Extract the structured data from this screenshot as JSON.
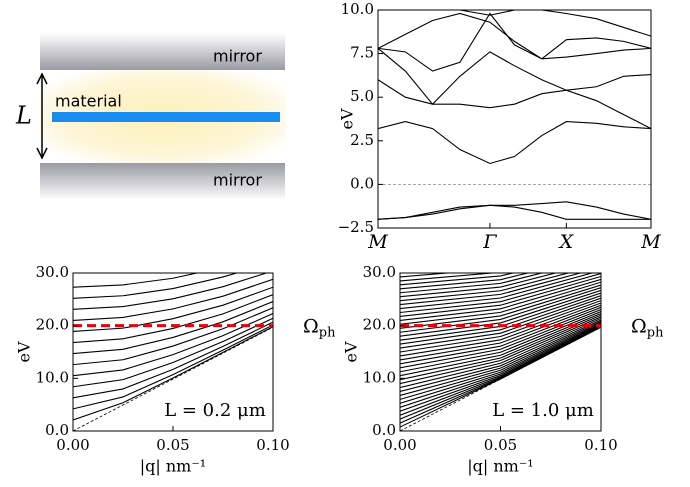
{
  "schematic": {
    "top_mirror": "mirror",
    "bottom_mirror": "mirror",
    "material": "material",
    "gap": "L"
  },
  "chart_data": [
    {
      "type": "line",
      "ylabel": "eV",
      "x": [
        0,
        0.1,
        0.2,
        0.3,
        0.41,
        0.5,
        0.6,
        0.69,
        0.8,
        0.9,
        1
      ],
      "xlim": [
        0,
        1
      ],
      "xticks": [
        {
          "value": 0,
          "label": "M"
        },
        {
          "value": 0.41,
          "label": "Γ"
        },
        {
          "value": 0.69,
          "label": "X"
        },
        {
          "value": 1,
          "label": "M"
        }
      ],
      "ylim": [
        -2.5,
        10
      ],
      "yticks": [
        {
          "value": -2.5,
          "label": "−2.5"
        },
        {
          "value": 0,
          "label": "0.0"
        },
        {
          "value": 2.5,
          "label": "2.5"
        },
        {
          "value": 5,
          "label": "5.0"
        },
        {
          "value": 7.5,
          "label": "7.5"
        },
        {
          "value": 10,
          "label": "10.0"
        }
      ],
      "hline": 0,
      "series": [
        {
          "color": "#000000",
          "values": [
            -2.0,
            -1.9,
            -1.6,
            -1.3,
            -1.2,
            -1.3,
            -1.6,
            -2.0,
            -2.0,
            -2.0,
            -2.0
          ]
        },
        {
          "color": "#000000",
          "values": [
            -2.0,
            -1.9,
            -1.7,
            -1.4,
            -1.2,
            -1.2,
            -1.1,
            -1.0,
            -1.3,
            -1.7,
            -2.0
          ]
        },
        {
          "color": "#000000",
          "values": [
            3.2,
            3.6,
            3.2,
            2.0,
            1.2,
            1.6,
            2.8,
            3.6,
            3.5,
            3.3,
            3.2
          ]
        },
        {
          "color": "#000000",
          "values": [
            6.0,
            5.0,
            4.6,
            4.6,
            4.4,
            4.6,
            5.2,
            5.4,
            4.8,
            4.0,
            3.2
          ]
        },
        {
          "color": "#000000",
          "values": [
            7.8,
            6.5,
            4.6,
            6.2,
            7.6,
            6.8,
            6.0,
            5.4,
            5.6,
            6.2,
            6.3
          ]
        },
        {
          "color": "#000000",
          "values": [
            7.8,
            8.6,
            9.4,
            9.8,
            9.3,
            8.2,
            7.2,
            7.3,
            7.5,
            7.7,
            7.8
          ]
        },
        {
          "color": "#000000",
          "values": [
            7.8,
            7.6,
            6.5,
            7.0,
            9.8,
            8.0,
            7.2,
            8.3,
            8.4,
            8.2,
            7.8
          ]
        },
        {
          "color": "#000000",
          "values": [
            10,
            10,
            10,
            10,
            9.7,
            10,
            10,
            9.8,
            9.5,
            9.0,
            8.5
          ]
        }
      ]
    },
    {
      "type": "line",
      "ylabel": "eV",
      "xlabel": "|q| nm⁻¹",
      "x": [
        0,
        0.025,
        0.05,
        0.075,
        0.1
      ],
      "xlim": [
        0,
        0.1
      ],
      "xticks": [
        {
          "value": 0,
          "label": "0.00"
        },
        {
          "value": 0.05,
          "label": "0.05"
        },
        {
          "value": 0.1,
          "label": "0.10"
        }
      ],
      "ylim": [
        0,
        30
      ],
      "yticks": [
        {
          "value": 0,
          "label": "0.0"
        },
        {
          "value": 10,
          "label": "10.0"
        },
        {
          "value": 20,
          "label": "20.0"
        },
        {
          "value": 30,
          "label": "30.0"
        }
      ],
      "hline": {
        "value": 20,
        "color": "#e8000b",
        "symbol": "Ω",
        "subscript": "ph"
      },
      "annotation": "L = 0.2 μm",
      "series": [
        {
          "color": "#000000",
          "style": "dashed",
          "values": [
            0,
            4.93,
            9.85,
            14.78,
            19.7
          ]
        },
        {
          "color": "#000000",
          "values": [
            2.1,
            5.36,
            10.07,
            14.93,
            19.81
          ]
        },
        {
          "color": "#000000",
          "values": [
            4.2,
            6.47,
            10.71,
            15.36,
            20.14
          ]
        },
        {
          "color": "#000000",
          "values": [
            6.3,
            7.99,
            11.71,
            16.07,
            20.68
          ]
        },
        {
          "color": "#000000",
          "values": [
            8.4,
            9.75,
            13.01,
            17.0,
            21.4
          ]
        },
        {
          "color": "#000000",
          "values": [
            10.5,
            11.6,
            14.5,
            18.1,
            22.3
          ]
        },
        {
          "color": "#000000",
          "values": [
            12.6,
            13.53,
            16.13,
            19.42,
            23.39
          ]
        },
        {
          "color": "#000000",
          "values": [
            14.7,
            15.51,
            17.76,
            20.73,
            24.58
          ]
        },
        {
          "color": "#000000",
          "values": [
            16.8,
            17.51,
            19.48,
            22.24,
            25.89
          ]
        },
        {
          "color": "#000000",
          "values": [
            18.9,
            19.53,
            21.32,
            23.89,
            27.3
          ]
        },
        {
          "color": "#000000",
          "values": [
            21.0,
            21.57,
            23.19,
            25.6,
            28.8
          ]
        },
        {
          "color": "#000000",
          "values": [
            23.1,
            23.62,
            25.1,
            27.4,
            30.4
          ]
        },
        {
          "color": "#000000",
          "values": [
            25.2,
            25.68,
            27.04,
            29.25,
            32.0
          ]
        },
        {
          "color": "#000000",
          "values": [
            27.3,
            27.74,
            29.0,
            31.1,
            33.6
          ]
        }
      ]
    },
    {
      "type": "line",
      "ylabel": "eV",
      "xlabel": "|q| nm⁻¹",
      "x": [
        0,
        0.05,
        0.1
      ],
      "xlim": [
        0,
        0.1
      ],
      "xticks": [
        {
          "value": 0,
          "label": "0.00"
        },
        {
          "value": 0.05,
          "label": "0.05"
        },
        {
          "value": 0.1,
          "label": "0.10"
        }
      ],
      "ylim": [
        0,
        30
      ],
      "yticks": [
        {
          "value": 0,
          "label": "0.0"
        },
        {
          "value": 10,
          "label": "10.0"
        },
        {
          "value": 20,
          "label": "20.0"
        },
        {
          "value": 30,
          "label": "30.0"
        }
      ],
      "hline": {
        "value": 20,
        "color": "#e8000b",
        "symbol": "Ω",
        "subscript": "ph"
      },
      "annotation": "L = 1.0 μm",
      "series": [
        {
          "color": "#000000",
          "style": "dashed",
          "values": [
            0,
            9.85,
            19.7
          ]
        },
        {
          "color": "#000000",
          "values": [
            0.75,
            9.88,
            19.71
          ]
        },
        {
          "color": "#000000",
          "values": [
            1.5,
            9.96,
            19.76
          ]
        },
        {
          "color": "#000000",
          "values": [
            2.25,
            10.1,
            19.83
          ]
        },
        {
          "color": "#000000",
          "values": [
            3.0,
            10.3,
            19.93
          ]
        },
        {
          "color": "#000000",
          "values": [
            3.75,
            10.54,
            20.05
          ]
        },
        {
          "color": "#000000",
          "values": [
            4.5,
            10.83,
            20.21
          ]
        },
        {
          "color": "#000000",
          "values": [
            5.25,
            11.16,
            20.39
          ]
        },
        {
          "color": "#000000",
          "values": [
            6.0,
            11.53,
            20.59
          ]
        },
        {
          "color": "#000000",
          "values": [
            6.75,
            11.94,
            20.82
          ]
        },
        {
          "color": "#000000",
          "values": [
            7.5,
            12.38,
            21.08
          ]
        },
        {
          "color": "#000000",
          "values": [
            8.25,
            12.86,
            21.37
          ]
        },
        {
          "color": "#000000",
          "values": [
            9.0,
            13.38,
            21.66
          ]
        },
        {
          "color": "#000000",
          "values": [
            9.75,
            13.86,
            21.99
          ]
        },
        {
          "color": "#000000",
          "values": [
            10.5,
            14.38,
            22.33
          ]
        },
        {
          "color": "#000000",
          "values": [
            11.25,
            14.95,
            22.68
          ]
        },
        {
          "color": "#000000",
          "values": [
            12.0,
            15.52,
            23.07
          ]
        },
        {
          "color": "#000000",
          "values": [
            12.75,
            16.1,
            23.46
          ]
        },
        {
          "color": "#000000",
          "values": [
            13.5,
            16.71,
            23.88
          ]
        },
        {
          "color": "#000000",
          "values": [
            14.25,
            17.32,
            24.31
          ]
        },
        {
          "color": "#000000",
          "values": [
            15.0,
            17.94,
            24.76
          ]
        },
        {
          "color": "#000000",
          "values": [
            15.75,
            18.57,
            25.22
          ]
        },
        {
          "color": "#000000",
          "values": [
            16.5,
            19.21,
            25.7
          ]
        },
        {
          "color": "#000000",
          "values": [
            17.25,
            19.86,
            26.19
          ]
        },
        {
          "color": "#000000",
          "values": [
            18.0,
            20.52,
            26.69
          ]
        },
        {
          "color": "#000000",
          "values": [
            18.75,
            21.18,
            27.21
          ]
        },
        {
          "color": "#000000",
          "values": [
            19.5,
            21.85,
            27.72
          ]
        },
        {
          "color": "#000000",
          "values": [
            20.25,
            22.52,
            28.25
          ]
        },
        {
          "color": "#000000",
          "values": [
            21.0,
            23.2,
            28.79
          ]
        },
        {
          "color": "#000000",
          "values": [
            21.75,
            23.88,
            29.34
          ]
        },
        {
          "color": "#000000",
          "values": [
            22.5,
            24.56,
            29.9
          ]
        },
        {
          "color": "#000000",
          "values": [
            23.25,
            25.25,
            30.47
          ]
        },
        {
          "color": "#000000",
          "values": [
            24.0,
            25.94,
            31.05
          ]
        },
        {
          "color": "#000000",
          "values": [
            24.75,
            26.63,
            31.64
          ]
        },
        {
          "color": "#000000",
          "values": [
            25.5,
            27.33,
            32.22
          ]
        },
        {
          "color": "#000000",
          "values": [
            26.25,
            28.03,
            32.82
          ]
        },
        {
          "color": "#000000",
          "values": [
            27.0,
            28.73,
            33.42
          ]
        },
        {
          "color": "#000000",
          "values": [
            27.75,
            29.44,
            34.03
          ]
        },
        {
          "color": "#000000",
          "values": [
            28.5,
            30.14,
            34.64
          ]
        },
        {
          "color": "#000000",
          "values": [
            29.25,
            30.85,
            35.26
          ]
        },
        {
          "color": "#000000",
          "values": [
            30.0,
            31.56,
            35.88
          ]
        }
      ]
    }
  ]
}
